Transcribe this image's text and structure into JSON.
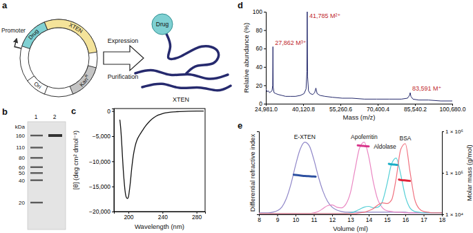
{
  "figure": {
    "panels": [
      "a",
      "b",
      "c",
      "d",
      "e"
    ]
  },
  "diagram": {
    "plasmid": {
      "promoter": "Promoter",
      "drug": "Drug",
      "xten": "XTEN",
      "ori": "Ori",
      "resistance": {
        "text": "Kan",
        "superscript": "R"
      }
    },
    "arrow_above": "Expression",
    "arrow_below": "Purification",
    "product": {
      "drug": "Drug",
      "xten": "XTEN"
    }
  },
  "gel": {
    "unit": "kDa",
    "lanes": [
      "1",
      "2"
    ],
    "markers": [
      160,
      110,
      80,
      60,
      50,
      40,
      20
    ],
    "lane_2_band": 160
  },
  "chart_data": [
    {
      "type": "line",
      "xlabel": "Wavelength (nm)",
      "ylabel": "[θ] (deg cm² dmol⁻¹)",
      "x": [
        190,
        191,
        192,
        193,
        194,
        195,
        196,
        197,
        198,
        199,
        200,
        201,
        202,
        204,
        206,
        208,
        210,
        213,
        216,
        220,
        225,
        230,
        235,
        240,
        250,
        260,
        270,
        280,
        288
      ],
      "series": [
        {
          "color": "#111111",
          "values": [
            -1800,
            -3500,
            -6000,
            -9000,
            -11800,
            -14000,
            -15800,
            -16900,
            -17300,
            -17400,
            -17100,
            -16000,
            -14600,
            -11200,
            -8600,
            -6900,
            -5800,
            -4800,
            -4000,
            -3000,
            -2000,
            -1300,
            -800,
            -500,
            -200,
            -100,
            -30,
            0,
            0
          ]
        }
      ],
      "xlim": [
        183,
        290
      ],
      "xticks": [
        200,
        240,
        280
      ],
      "ylim": [
        -20000,
        500
      ],
      "yticks": [
        {
          "value": -20000,
          "label": "−20,000"
        },
        {
          "value": -15000,
          "label": "−15,000"
        },
        {
          "value": -10000,
          "label": "−10,000"
        },
        {
          "value": -5000,
          "label": "−5,000"
        },
        0
      ]
    },
    {
      "type": "line",
      "xlabel": "Mass (m/z)",
      "ylabel": "Relative abundance (%)",
      "x": [
        24981,
        25500,
        26000,
        26500,
        27000,
        27500,
        27750,
        27862,
        27970,
        28300,
        29000,
        30000,
        31500,
        33000,
        35000,
        37000,
        39000,
        40500,
        41300,
        41650,
        41785,
        41920,
        42300,
        43000,
        44000,
        44800,
        45300,
        45800,
        47000,
        49000,
        52000,
        56000,
        60000,
        65000,
        70000,
        75000,
        80000,
        82500,
        83300,
        83591,
        83880,
        84700,
        87000,
        91000,
        96000,
        100680
      ],
      "series": [
        {
          "color": "#23286b",
          "values": [
            16,
            13,
            14,
            12,
            13,
            14,
            20,
            62,
            18,
            12,
            11,
            10,
            9,
            8,
            8,
            8,
            9,
            11,
            16,
            35,
            100,
            30,
            14,
            11,
            10,
            12,
            17,
            11,
            9,
            8,
            7,
            6,
            6,
            5,
            5,
            5,
            5,
            6,
            9,
            12,
            8,
            5,
            4,
            4,
            3,
            3
          ]
        }
      ],
      "xlim": [
        24981.0,
        100680.0
      ],
      "xticks": [
        {
          "value": 24981.0,
          "label": "24,981.0"
        },
        {
          "value": 40120.8,
          "label": "40,120.8"
        },
        {
          "value": 55260.6,
          "label": "55,260.6"
        },
        {
          "value": 70400.4,
          "label": "70,400.4"
        },
        {
          "value": 85540.2,
          "label": "85,540.2"
        },
        {
          "value": 100680.0,
          "label": "100,680.0"
        }
      ],
      "ylim": [
        0,
        100
      ],
      "yticks": [
        0,
        20,
        40,
        60,
        80,
        100
      ],
      "annotations": [
        {
          "x": 27862,
          "label": "27,862 M³⁺",
          "color": "#c0282d"
        },
        {
          "x": 41785,
          "label": "41,785 M²⁺",
          "color": "#c0282d"
        },
        {
          "x": 83591,
          "label": "83,591 M⁺",
          "color": "#c0282d"
        }
      ]
    },
    {
      "type": "line",
      "xlabel": "Volume (ml)",
      "ylabel": "Differential refractive index",
      "y2label": "Molar mass (g/mol)",
      "x": [
        8,
        8.25,
        8.5,
        8.75,
        9,
        9.25,
        9.5,
        9.75,
        10,
        10.25,
        10.5,
        10.75,
        11,
        11.25,
        11.5,
        11.75,
        12,
        12.25,
        12.5,
        12.75,
        13,
        13.25,
        13.5,
        13.75,
        14,
        14.25,
        14.5,
        14.75,
        15,
        15.25,
        15.5,
        15.75,
        16,
        16.25,
        16.5,
        16.75,
        17,
        17.25,
        17.5,
        17.75,
        18
      ],
      "xlim": [
        8,
        18
      ],
      "xticks": [
        8,
        9,
        10,
        11,
        12,
        13,
        14,
        15,
        16,
        17,
        18
      ],
      "ylim": [
        0,
        1.15
      ],
      "yticks": [],
      "y2lim": [
        10000,
        1000000
      ],
      "y2ticks": [
        {
          "value": 10000,
          "label": "1 × 10⁴"
        },
        {
          "value": 100000,
          "label": "1 × 10⁵"
        },
        {
          "value": 1000000,
          "label": "1 × 10⁶"
        }
      ],
      "log": "y2",
      "series": [
        {
          "name": "E-XTEN",
          "color": "#8f86c8",
          "values": [
            0.02,
            0.02,
            0.02,
            0.03,
            0.05,
            0.1,
            0.22,
            0.42,
            0.68,
            0.9,
            1.0,
            0.95,
            0.76,
            0.52,
            0.32,
            0.18,
            0.1,
            0.06,
            0.04,
            0.03,
            0.03,
            0.03,
            0.03,
            0.03,
            0.03,
            0.03,
            0.03,
            0.03,
            0.03,
            0.03,
            0.03,
            0.03,
            0.03,
            0.02,
            0.02,
            0.02,
            0.02,
            0.02,
            0.02,
            0.02,
            0.02
          ]
        },
        {
          "name": "Apoferritin",
          "color": "#ea86c2",
          "values": [
            0.01,
            0.01,
            0.01,
            0.01,
            0.01,
            0.01,
            0.01,
            0.01,
            0.01,
            0.01,
            0.01,
            0.01,
            0.02,
            0.04,
            0.08,
            0.12,
            0.13,
            0.1,
            0.09,
            0.14,
            0.3,
            0.62,
            0.92,
            1.0,
            0.8,
            0.45,
            0.2,
            0.09,
            0.05,
            0.04,
            0.03,
            0.03,
            0.02,
            0.02,
            0.02,
            0.02,
            0.02,
            0.02,
            0.02,
            0.02,
            0.02
          ]
        },
        {
          "name": "Aldolase",
          "color": "#54cfd6",
          "values": [
            0.01,
            0.01,
            0.01,
            0.01,
            0.01,
            0.01,
            0.01,
            0.01,
            0.01,
            0.01,
            0.01,
            0.01,
            0.01,
            0.01,
            0.01,
            0.01,
            0.01,
            0.01,
            0.01,
            0.01,
            0.02,
            0.04,
            0.07,
            0.1,
            0.11,
            0.09,
            0.1,
            0.18,
            0.42,
            0.7,
            0.78,
            0.55,
            0.25,
            0.09,
            0.04,
            0.03,
            0.02,
            0.02,
            0.02,
            0.02,
            0.02
          ]
        },
        {
          "name": "BSA",
          "color": "#f0707e",
          "values": [
            0.01,
            0.01,
            0.01,
            0.01,
            0.01,
            0.01,
            0.01,
            0.01,
            0.01,
            0.01,
            0.01,
            0.01,
            0.01,
            0.01,
            0.01,
            0.01,
            0.01,
            0.01,
            0.01,
            0.01,
            0.01,
            0.01,
            0.02,
            0.03,
            0.05,
            0.08,
            0.13,
            0.16,
            0.15,
            0.2,
            0.5,
            0.9,
            0.98,
            0.6,
            0.22,
            0.08,
            0.04,
            0.03,
            0.02,
            0.02,
            0.02
          ]
        },
        {
          "axis": "y2",
          "color": "#2c4fa0",
          "x": [
            9.9,
            10.1,
            10.3,
            10.5,
            10.7,
            10.9,
            11.1
          ],
          "values": [
            90000,
            88000,
            86000,
            84000,
            83000,
            82000,
            81000
          ]
        },
        {
          "axis": "y2",
          "color": "#d8358a",
          "x": [
            13.4,
            13.55,
            13.7,
            13.85,
            14.0
          ],
          "values": [
            460000,
            450000,
            445000,
            440000,
            435000
          ]
        },
        {
          "axis": "y2",
          "color": "#1aaec6",
          "x": [
            15.1,
            15.25,
            15.4,
            15.55
          ],
          "values": [
            165000,
            160000,
            158000,
            155000
          ]
        },
        {
          "axis": "y2",
          "color": "#e0253a",
          "x": [
            15.65,
            15.8,
            15.95,
            16.1,
            16.25
          ],
          "values": [
            69000,
            67000,
            66000,
            65000,
            64000
          ]
        }
      ]
    }
  ]
}
